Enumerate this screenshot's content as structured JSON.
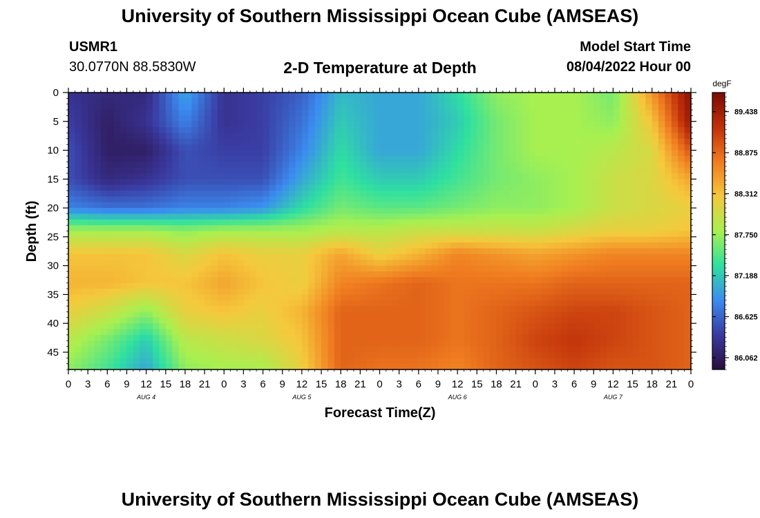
{
  "header": {
    "title": "University of Southern Mississippi Ocean Cube (AMSEAS)",
    "station": "USMR1",
    "coords": "30.0770N  88.5830W",
    "subtitle": "2-D Temperature at Depth",
    "model_start_label": "Model Start Time",
    "model_start_value": "08/04/2022 Hour 00"
  },
  "footer": {
    "title": "University of Southern Mississippi Ocean Cube (AMSEAS)"
  },
  "chart_data": {
    "type": "heatmap",
    "xlabel": "Forecast Time(Z)",
    "ylabel": "Depth (ft)",
    "colorbar_unit": "degF",
    "x_tick_labels": [
      "0",
      "3",
      "6",
      "9",
      "12",
      "15",
      "18",
      "21",
      "0",
      "3",
      "6",
      "9",
      "12",
      "15",
      "18",
      "21",
      "0",
      "3",
      "6",
      "9",
      "12",
      "15",
      "18",
      "21",
      "0",
      "3",
      "6",
      "9",
      "12",
      "15",
      "18",
      "21",
      "0"
    ],
    "day_labels": [
      "AUG 4",
      "AUG 5",
      "AUG 6",
      "AUG 7"
    ],
    "xlim_hours": [
      0,
      96
    ],
    "y_ticks": [
      0,
      5,
      10,
      15,
      20,
      25,
      30,
      35,
      40,
      45
    ],
    "ylim": [
      0,
      48
    ],
    "colorbar_ticks": [
      "89.438",
      "88.875",
      "88.312",
      "87.750",
      "87.188",
      "86.625",
      "86.062"
    ],
    "colorbar_range": [
      85.9,
      89.7
    ],
    "colormap": [
      "#2a0c3c",
      "#3a3aa0",
      "#3b8cf0",
      "#2fe0a0",
      "#a8f050",
      "#f5c83c",
      "#f07c20",
      "#c0300a",
      "#7a0a04"
    ],
    "grid": false,
    "time_hours": [
      0,
      6,
      12,
      18,
      24,
      30,
      36,
      42,
      48,
      54,
      60,
      66,
      72,
      78,
      84,
      90,
      96
    ],
    "depth_ft": [
      0,
      5,
      10,
      15,
      20,
      24,
      28,
      33,
      38,
      43,
      48
    ],
    "temperature_degF": [
      [
        86.3,
        86.2,
        86.2,
        87.0,
        86.3,
        86.4,
        86.6,
        87.1,
        87.0,
        87.0,
        87.3,
        87.7,
        87.8,
        87.8,
        87.6,
        88.6,
        89.6
      ],
      [
        86.4,
        86.1,
        86.3,
        86.8,
        86.3,
        86.4,
        86.7,
        87.2,
        87.0,
        87.0,
        87.2,
        87.6,
        87.8,
        87.8,
        87.7,
        88.3,
        89.5
      ],
      [
        86.5,
        86.1,
        86.1,
        86.5,
        86.4,
        86.4,
        86.8,
        87.3,
        87.0,
        87.0,
        87.3,
        87.6,
        87.8,
        87.8,
        87.9,
        88.1,
        89.0
      ],
      [
        86.5,
        86.2,
        86.3,
        86.5,
        86.5,
        86.5,
        87.0,
        87.4,
        87.2,
        87.2,
        87.4,
        87.6,
        87.7,
        87.8,
        88.0,
        88.1,
        88.5
      ],
      [
        86.8,
        86.7,
        86.7,
        86.8,
        86.8,
        86.9,
        87.3,
        87.6,
        87.5,
        87.5,
        87.6,
        87.7,
        87.7,
        87.8,
        88.0,
        88.1,
        88.2
      ],
      [
        87.8,
        87.8,
        87.8,
        87.7,
        87.8,
        87.8,
        87.8,
        87.9,
        87.9,
        88.0,
        88.0,
        88.0,
        88.0,
        88.1,
        88.2,
        88.2,
        88.3
      ],
      [
        88.3,
        88.3,
        88.3,
        88.1,
        88.3,
        88.2,
        88.2,
        88.5,
        88.2,
        88.4,
        88.7,
        88.6,
        88.5,
        88.6,
        88.7,
        88.7,
        88.7
      ],
      [
        88.4,
        88.4,
        88.3,
        88.3,
        88.5,
        88.3,
        88.2,
        88.7,
        88.8,
        88.9,
        88.8,
        88.8,
        88.8,
        88.9,
        88.9,
        88.9,
        88.9
      ],
      [
        88.2,
        88.0,
        87.7,
        88.2,
        88.3,
        88.2,
        88.4,
        88.9,
        88.9,
        88.9,
        88.8,
        88.9,
        89.0,
        89.1,
        89.1,
        89.0,
        88.9
      ],
      [
        87.9,
        87.6,
        87.2,
        87.9,
        88.0,
        88.1,
        88.3,
        88.9,
        88.9,
        88.9,
        88.8,
        88.9,
        89.1,
        89.2,
        89.1,
        89.0,
        88.9
      ],
      [
        87.7,
        87.4,
        87.0,
        87.7,
        87.8,
        87.8,
        88.2,
        88.9,
        88.8,
        88.8,
        88.7,
        88.9,
        89.0,
        89.1,
        89.0,
        89.0,
        88.9
      ]
    ]
  }
}
